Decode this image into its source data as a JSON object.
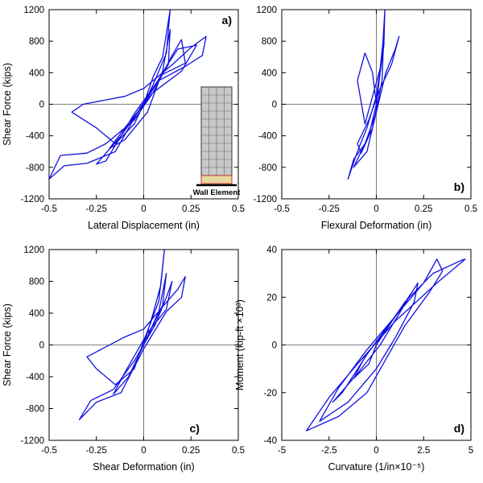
{
  "figure": {
    "panels": [
      {
        "id": "a",
        "panel_label": "a)",
        "label_pos": "top-right",
        "xlabel": "Lateral Displacement (in)",
        "ylabel": "Shear Force (kips)",
        "xlim": [
          -0.5,
          0.5
        ],
        "ylim": [
          -1200,
          1200
        ],
        "xticks": [
          -0.5,
          -0.25,
          0,
          0.25,
          0.5
        ],
        "xtick_labels": [
          "-0.5",
          "-0.25",
          "0",
          "0.25",
          "0.5"
        ],
        "yticks": [
          -1200,
          -800,
          -400,
          0,
          400,
          800,
          1200
        ],
        "ytick_labels": [
          "-1200",
          "-800",
          "-400",
          "0",
          "400",
          "800",
          "1200"
        ],
        "inset": {
          "label": "Wall Element"
        }
      },
      {
        "id": "b",
        "panel_label": "b)",
        "label_pos": "bottom-right",
        "xlabel": "Flexural Deformation (in)",
        "ylabel": "",
        "xlim": [
          -0.5,
          0.5
        ],
        "ylim": [
          -1200,
          1200
        ],
        "xticks": [
          -0.5,
          -0.25,
          0,
          0.25,
          0.5
        ],
        "xtick_labels": [
          "-0.5",
          "-0.25",
          "0",
          "0.25",
          "0.5"
        ],
        "yticks": [
          -1200,
          -800,
          -400,
          0,
          400,
          800,
          1200
        ],
        "ytick_labels": [
          "-1200",
          "-800",
          "-400",
          "0",
          "400",
          "800",
          "1200"
        ]
      },
      {
        "id": "c",
        "panel_label": "c)",
        "label_pos": "bottom-left",
        "xlabel": "Shear Deformation (in)",
        "ylabel": "Shear Force (kips)",
        "xlim": [
          -0.5,
          0.5
        ],
        "ylim": [
          -1200,
          1200
        ],
        "xticks": [
          -0.5,
          -0.25,
          0,
          0.25,
          0.5
        ],
        "xtick_labels": [
          "-0.5",
          "-0.25",
          "0",
          "0.25",
          "0.5"
        ],
        "yticks": [
          -1200,
          -800,
          -400,
          0,
          400,
          800,
          1200
        ],
        "ytick_labels": [
          "-1200",
          "-800",
          "-400",
          "0",
          "400",
          "800",
          "1200"
        ]
      },
      {
        "id": "d",
        "panel_label": "d)",
        "label_pos": "bottom-right",
        "xlabel": "Curvature (1/in×10⁻⁵)",
        "ylabel": "Moment (kip-ft ×10³)",
        "xlim": [
          -5,
          5
        ],
        "ylim": [
          -40,
          40
        ],
        "xticks": [
          -5,
          -2.5,
          0,
          2.5,
          5
        ],
        "xtick_labels": [
          "-5",
          "-2.5",
          "0",
          "2.5",
          "5"
        ],
        "yticks": [
          -40,
          -20,
          0,
          20,
          40
        ],
        "ytick_labels": [
          "-40",
          "-20",
          "0",
          "20",
          "40"
        ]
      }
    ]
  },
  "colors": {
    "series": "#1010e0",
    "axis": "#000000",
    "zero_line": "#555555"
  },
  "chart_data": [
    {
      "type": "line",
      "title": "",
      "xlabel": "Lateral Displacement (in)",
      "ylabel": "Shear Force (kips)",
      "xlim": [
        -0.5,
        0.5
      ],
      "ylim": [
        -1200,
        1200
      ],
      "grid": false,
      "series": [
        {
          "values": [
            [
              0,
              0
            ],
            [
              0.05,
              350
            ],
            [
              0.1,
              600
            ],
            [
              0.14,
              1200
            ],
            [
              0.12,
              650
            ],
            [
              0.05,
              250
            ],
            [
              -0.05,
              -250
            ],
            [
              -0.15,
              -500
            ],
            [
              -0.25,
              -300
            ],
            [
              -0.38,
              -100
            ],
            [
              -0.32,
              0
            ],
            [
              -0.1,
              100
            ],
            [
              0,
              200
            ],
            [
              0.15,
              500
            ],
            [
              0.25,
              720
            ],
            [
              0.33,
              860
            ],
            [
              0.31,
              620
            ],
            [
              0.22,
              480
            ],
            [
              0.08,
              300
            ],
            [
              -0.02,
              -50
            ],
            [
              -0.15,
              -600
            ],
            [
              -0.3,
              -750
            ],
            [
              -0.42,
              -780
            ],
            [
              -0.5,
              -950
            ],
            [
              -0.44,
              -650
            ],
            [
              -0.3,
              -620
            ],
            [
              -0.2,
              -500
            ],
            [
              -0.05,
              -200
            ],
            [
              0.05,
              150
            ],
            [
              0.15,
              620
            ],
            [
              0.2,
              820
            ],
            [
              0.22,
              520
            ],
            [
              0.1,
              380
            ],
            [
              -0.05,
              -120
            ],
            [
              -0.2,
              -720
            ],
            [
              -0.25,
              -760
            ],
            [
              -0.12,
              -400
            ],
            [
              0.0,
              0
            ],
            [
              0.12,
              480
            ],
            [
              0.18,
              700
            ],
            [
              0.28,
              750
            ],
            [
              0.2,
              420
            ],
            [
              0.05,
              150
            ],
            [
              -0.1,
              -300
            ],
            [
              -0.18,
              -560
            ],
            [
              -0.1,
              -450
            ],
            [
              0.02,
              -100
            ],
            [
              0.1,
              420
            ],
            [
              0.14,
              950
            ],
            [
              0.13,
              500
            ],
            [
              0,
              0
            ]
          ]
        }
      ]
    },
    {
      "type": "line",
      "title": "",
      "xlabel": "Flexural Deformation (in)",
      "ylabel": "",
      "xlim": [
        -0.5,
        0.5
      ],
      "ylim": [
        -1200,
        1200
      ],
      "grid": false,
      "series": [
        {
          "values": [
            [
              0,
              0
            ],
            [
              0.02,
              400
            ],
            [
              0.04,
              750
            ],
            [
              0.045,
              1200
            ],
            [
              0.03,
              600
            ],
            [
              0.0,
              100
            ],
            [
              -0.05,
              -300
            ],
            [
              -0.1,
              -600
            ],
            [
              -0.15,
              -950
            ],
            [
              -0.12,
              -700
            ],
            [
              -0.06,
              -500
            ],
            [
              0.0,
              -100
            ],
            [
              0.05,
              400
            ],
            [
              0.1,
              700
            ],
            [
              0.12,
              860
            ],
            [
              0.08,
              500
            ],
            [
              0.02,
              200
            ],
            [
              -0.04,
              -200
            ],
            [
              -0.1,
              -500
            ],
            [
              -0.08,
              -620
            ],
            [
              -0.02,
              -300
            ],
            [
              0.03,
              300
            ],
            [
              0.04,
              900
            ],
            [
              0.02,
              450
            ],
            [
              -0.06,
              -250
            ],
            [
              -0.1,
              300
            ],
            [
              -0.06,
              650
            ],
            [
              -0.02,
              400
            ],
            [
              0.0,
              0
            ],
            [
              -0.04,
              -400
            ],
            [
              -0.12,
              -800
            ],
            [
              -0.05,
              -600
            ],
            [
              0.02,
              100
            ],
            [
              0,
              0
            ]
          ]
        }
      ]
    },
    {
      "type": "line",
      "title": "",
      "xlabel": "Shear Deformation (in)",
      "ylabel": "Shear Force (kips)",
      "xlim": [
        -0.5,
        0.5
      ],
      "ylim": [
        -1200,
        1200
      ],
      "grid": false,
      "series": [
        {
          "values": [
            [
              0,
              0
            ],
            [
              0.05,
              400
            ],
            [
              0.09,
              750
            ],
            [
              0.11,
              1200
            ],
            [
              0.08,
              550
            ],
            [
              0.0,
              50
            ],
            [
              -0.05,
              -300
            ],
            [
              -0.15,
              -500
            ],
            [
              -0.25,
              -300
            ],
            [
              -0.3,
              -150
            ],
            [
              -0.1,
              100
            ],
            [
              0,
              200
            ],
            [
              0.1,
              480
            ],
            [
              0.18,
              700
            ],
            [
              0.22,
              860
            ],
            [
              0.2,
              600
            ],
            [
              0.12,
              420
            ],
            [
              0.0,
              -50
            ],
            [
              -0.12,
              -600
            ],
            [
              -0.25,
              -720
            ],
            [
              -0.34,
              -940
            ],
            [
              -0.28,
              -700
            ],
            [
              -0.16,
              -560
            ],
            [
              -0.05,
              -200
            ],
            [
              0.06,
              250
            ],
            [
              0.12,
              600
            ],
            [
              0.15,
              800
            ],
            [
              0.12,
              450
            ],
            [
              0.02,
              150
            ],
            [
              -0.1,
              -350
            ],
            [
              -0.16,
              -620
            ],
            [
              -0.08,
              -400
            ],
            [
              0.0,
              0
            ],
            [
              0.08,
              420
            ],
            [
              0.12,
              900
            ],
            [
              0.1,
              500
            ],
            [
              0,
              0
            ]
          ]
        }
      ]
    },
    {
      "type": "line",
      "title": "",
      "xlabel": "Curvature (1/in×10⁻⁵)",
      "ylabel": "Moment (kip-ft ×10³)",
      "xlim": [
        -5,
        5
      ],
      "ylim": [
        -40,
        40
      ],
      "grid": false,
      "series": [
        {
          "values": [
            [
              0,
              0
            ],
            [
              1.5,
              18
            ],
            [
              3,
              30
            ],
            [
              4.5,
              35.5
            ],
            [
              4.7,
              36
            ],
            [
              3.2,
              26
            ],
            [
              1.0,
              10
            ],
            [
              -1.0,
              -8
            ],
            [
              -2.5,
              -22
            ],
            [
              -3.7,
              -36
            ],
            [
              -2.0,
              -30
            ],
            [
              -0.5,
              -20
            ],
            [
              0.5,
              -6
            ],
            [
              1.5,
              8
            ],
            [
              2.8,
              22
            ],
            [
              3.5,
              31
            ],
            [
              3.2,
              36
            ],
            [
              2.5,
              26
            ],
            [
              1.0,
              12
            ],
            [
              -0.5,
              -2
            ],
            [
              -2.0,
              -18
            ],
            [
              -3.0,
              -32
            ],
            [
              -1.5,
              -24
            ],
            [
              0.0,
              -10
            ],
            [
              1.0,
              3
            ],
            [
              2.0,
              18
            ],
            [
              2.2,
              26
            ],
            [
              1.2,
              14
            ],
            [
              -0.5,
              -4
            ],
            [
              -1.8,
              -20
            ],
            [
              -2.3,
              -24
            ],
            [
              -1.0,
              -12
            ],
            [
              0.2,
              0
            ],
            [
              1.2,
              13
            ],
            [
              1.8,
              21
            ],
            [
              0.8,
              10
            ],
            [
              -0.6,
              -5
            ],
            [
              -1.2,
              -14
            ],
            [
              -0.4,
              -8
            ],
            [
              0,
              0
            ]
          ]
        }
      ]
    }
  ]
}
